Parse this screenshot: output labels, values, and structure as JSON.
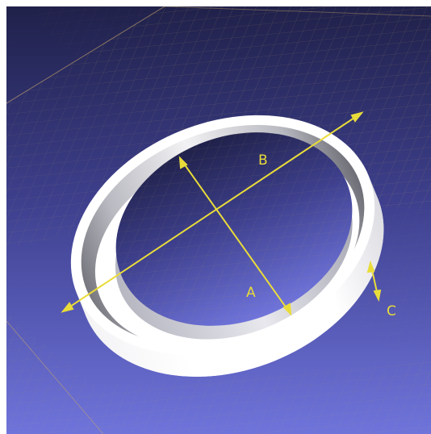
{
  "labels": {
    "a": "A",
    "b": "B",
    "c": "C"
  },
  "colors": {
    "background_top": "#23244f",
    "background_bottom": "#6d72d8",
    "grid_line": "#c9a86a",
    "ring_white": "#ffffff",
    "ring_shadow": "#8d8d96",
    "annotation": "#e9dc3a"
  }
}
